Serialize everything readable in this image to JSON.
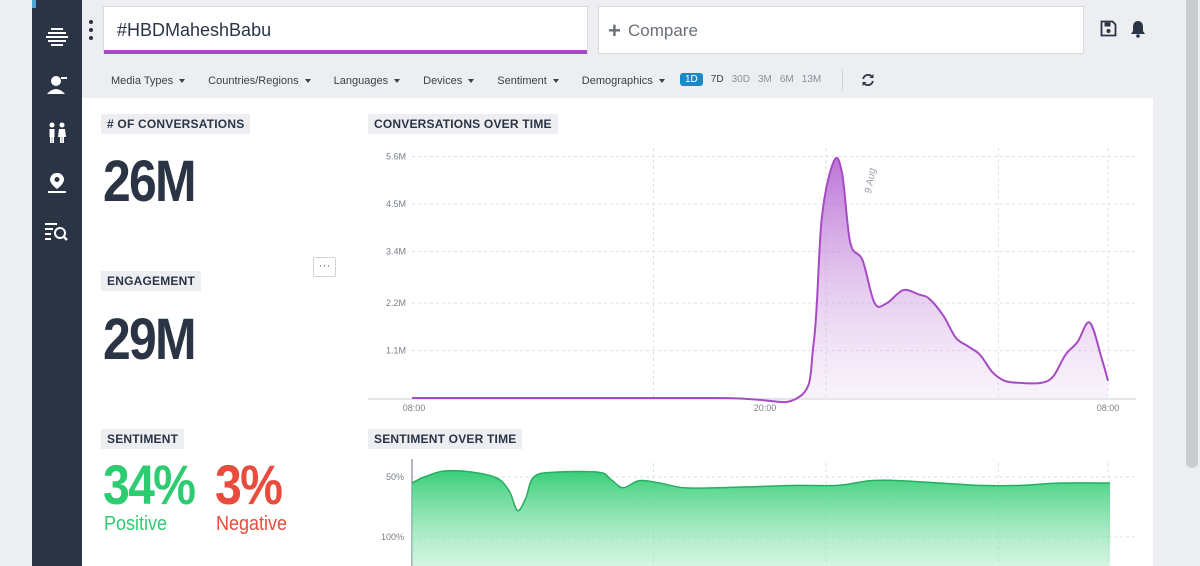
{
  "search": {
    "query": "#HBDMaheshBabu"
  },
  "compare": {
    "label": "Compare"
  },
  "filters": [
    {
      "label": "Media Types"
    },
    {
      "label": "Countries/Regions"
    },
    {
      "label": "Languages"
    },
    {
      "label": "Devices"
    },
    {
      "label": "Sentiment"
    },
    {
      "label": "Demographics"
    }
  ],
  "ranges": [
    {
      "label": "1D",
      "active": true
    },
    {
      "label": "7D"
    },
    {
      "label": "30D"
    },
    {
      "label": "3M"
    },
    {
      "label": "6M"
    },
    {
      "label": "13M"
    }
  ],
  "metrics": {
    "conversations_label": "# OF CONVERSATIONS",
    "conversations_value": "26M",
    "engagement_label": "ENGAGEMENT",
    "engagement_value": "29M",
    "more_label": "···",
    "sentiment_label": "SENTIMENT",
    "positive_pct": "34%",
    "positive_label": "Positive",
    "negative_pct": "3%",
    "negative_label": "Negative"
  },
  "colors": {
    "accent": "#a64bc4",
    "positive": "#2ecc71",
    "negative": "#e74c3c",
    "sidebar": "#2b3444",
    "active_range": "#1e88c6"
  },
  "icons": [
    "logo-icon",
    "user-icon",
    "people-icon",
    "location-icon",
    "search-list-icon",
    "save-icon",
    "bell-icon",
    "refresh-icon"
  ],
  "chart_data": [
    {
      "type": "area",
      "title": "CONVERSATIONS OVER TIME",
      "x_ticks": [
        "08:00",
        "20:00",
        "08:00"
      ],
      "y_ticks": [
        "1.1M",
        "2.2M",
        "3.4M",
        "4.5M",
        "5.6M"
      ],
      "annotation": "9 Aug",
      "ylim": [
        0,
        5.8
      ],
      "series": [
        {
          "values": [
            [
              0,
              0
            ],
            [
              15,
              0
            ],
            [
              19,
              0
            ],
            [
              19.8,
              1.3
            ],
            [
              20.2,
              4.2
            ],
            [
              20.8,
              5.5
            ],
            [
              21.2,
              5.2
            ],
            [
              21.6,
              3.6
            ],
            [
              22.2,
              3.2
            ],
            [
              22.8,
              2.2
            ],
            [
              23.4,
              2.2
            ],
            [
              24.2,
              2.5
            ],
            [
              25,
              2.4
            ],
            [
              25.5,
              2.3
            ],
            [
              26.2,
              1.9
            ],
            [
              26.8,
              1.4
            ],
            [
              27.4,
              1.2
            ],
            [
              28,
              1.0
            ],
            [
              28.6,
              0.6
            ],
            [
              29.2,
              0.4
            ],
            [
              30,
              0.35
            ],
            [
              31,
              0.35
            ],
            [
              31.6,
              0.5
            ],
            [
              32.2,
              1.0
            ],
            [
              32.8,
              1.3
            ],
            [
              33.4,
              1.75
            ],
            [
              34,
              0.9
            ],
            [
              34.3,
              0.4
            ]
          ]
        }
      ]
    },
    {
      "type": "area",
      "title": "SENTIMENT OVER TIME",
      "y_ticks": [
        "50%",
        "100%"
      ],
      "ylim": [
        0,
        110
      ],
      "series": [
        {
          "values": [
            [
              0,
              95
            ],
            [
              0.6,
              100
            ],
            [
              1.6,
              105
            ],
            [
              3.0,
              104
            ],
            [
              4.2,
              99
            ],
            [
              4.8,
              88
            ],
            [
              5.2,
              72
            ],
            [
              5.6,
              82
            ],
            [
              6.0,
              100
            ],
            [
              7.0,
              104
            ],
            [
              9.2,
              104
            ],
            [
              9.8,
              98
            ],
            [
              10.4,
              91
            ],
            [
              11.2,
              97
            ],
            [
              12.2,
              95
            ],
            [
              13.4,
              91
            ],
            [
              15,
              91
            ],
            [
              17,
              92
            ],
            [
              19,
              93
            ],
            [
              21,
              93
            ],
            [
              22.6,
              97
            ],
            [
              24,
              97
            ],
            [
              26,
              95
            ],
            [
              28,
              93
            ],
            [
              30,
              93
            ],
            [
              32,
              95
            ],
            [
              34.4,
              95
            ]
          ]
        }
      ]
    }
  ]
}
